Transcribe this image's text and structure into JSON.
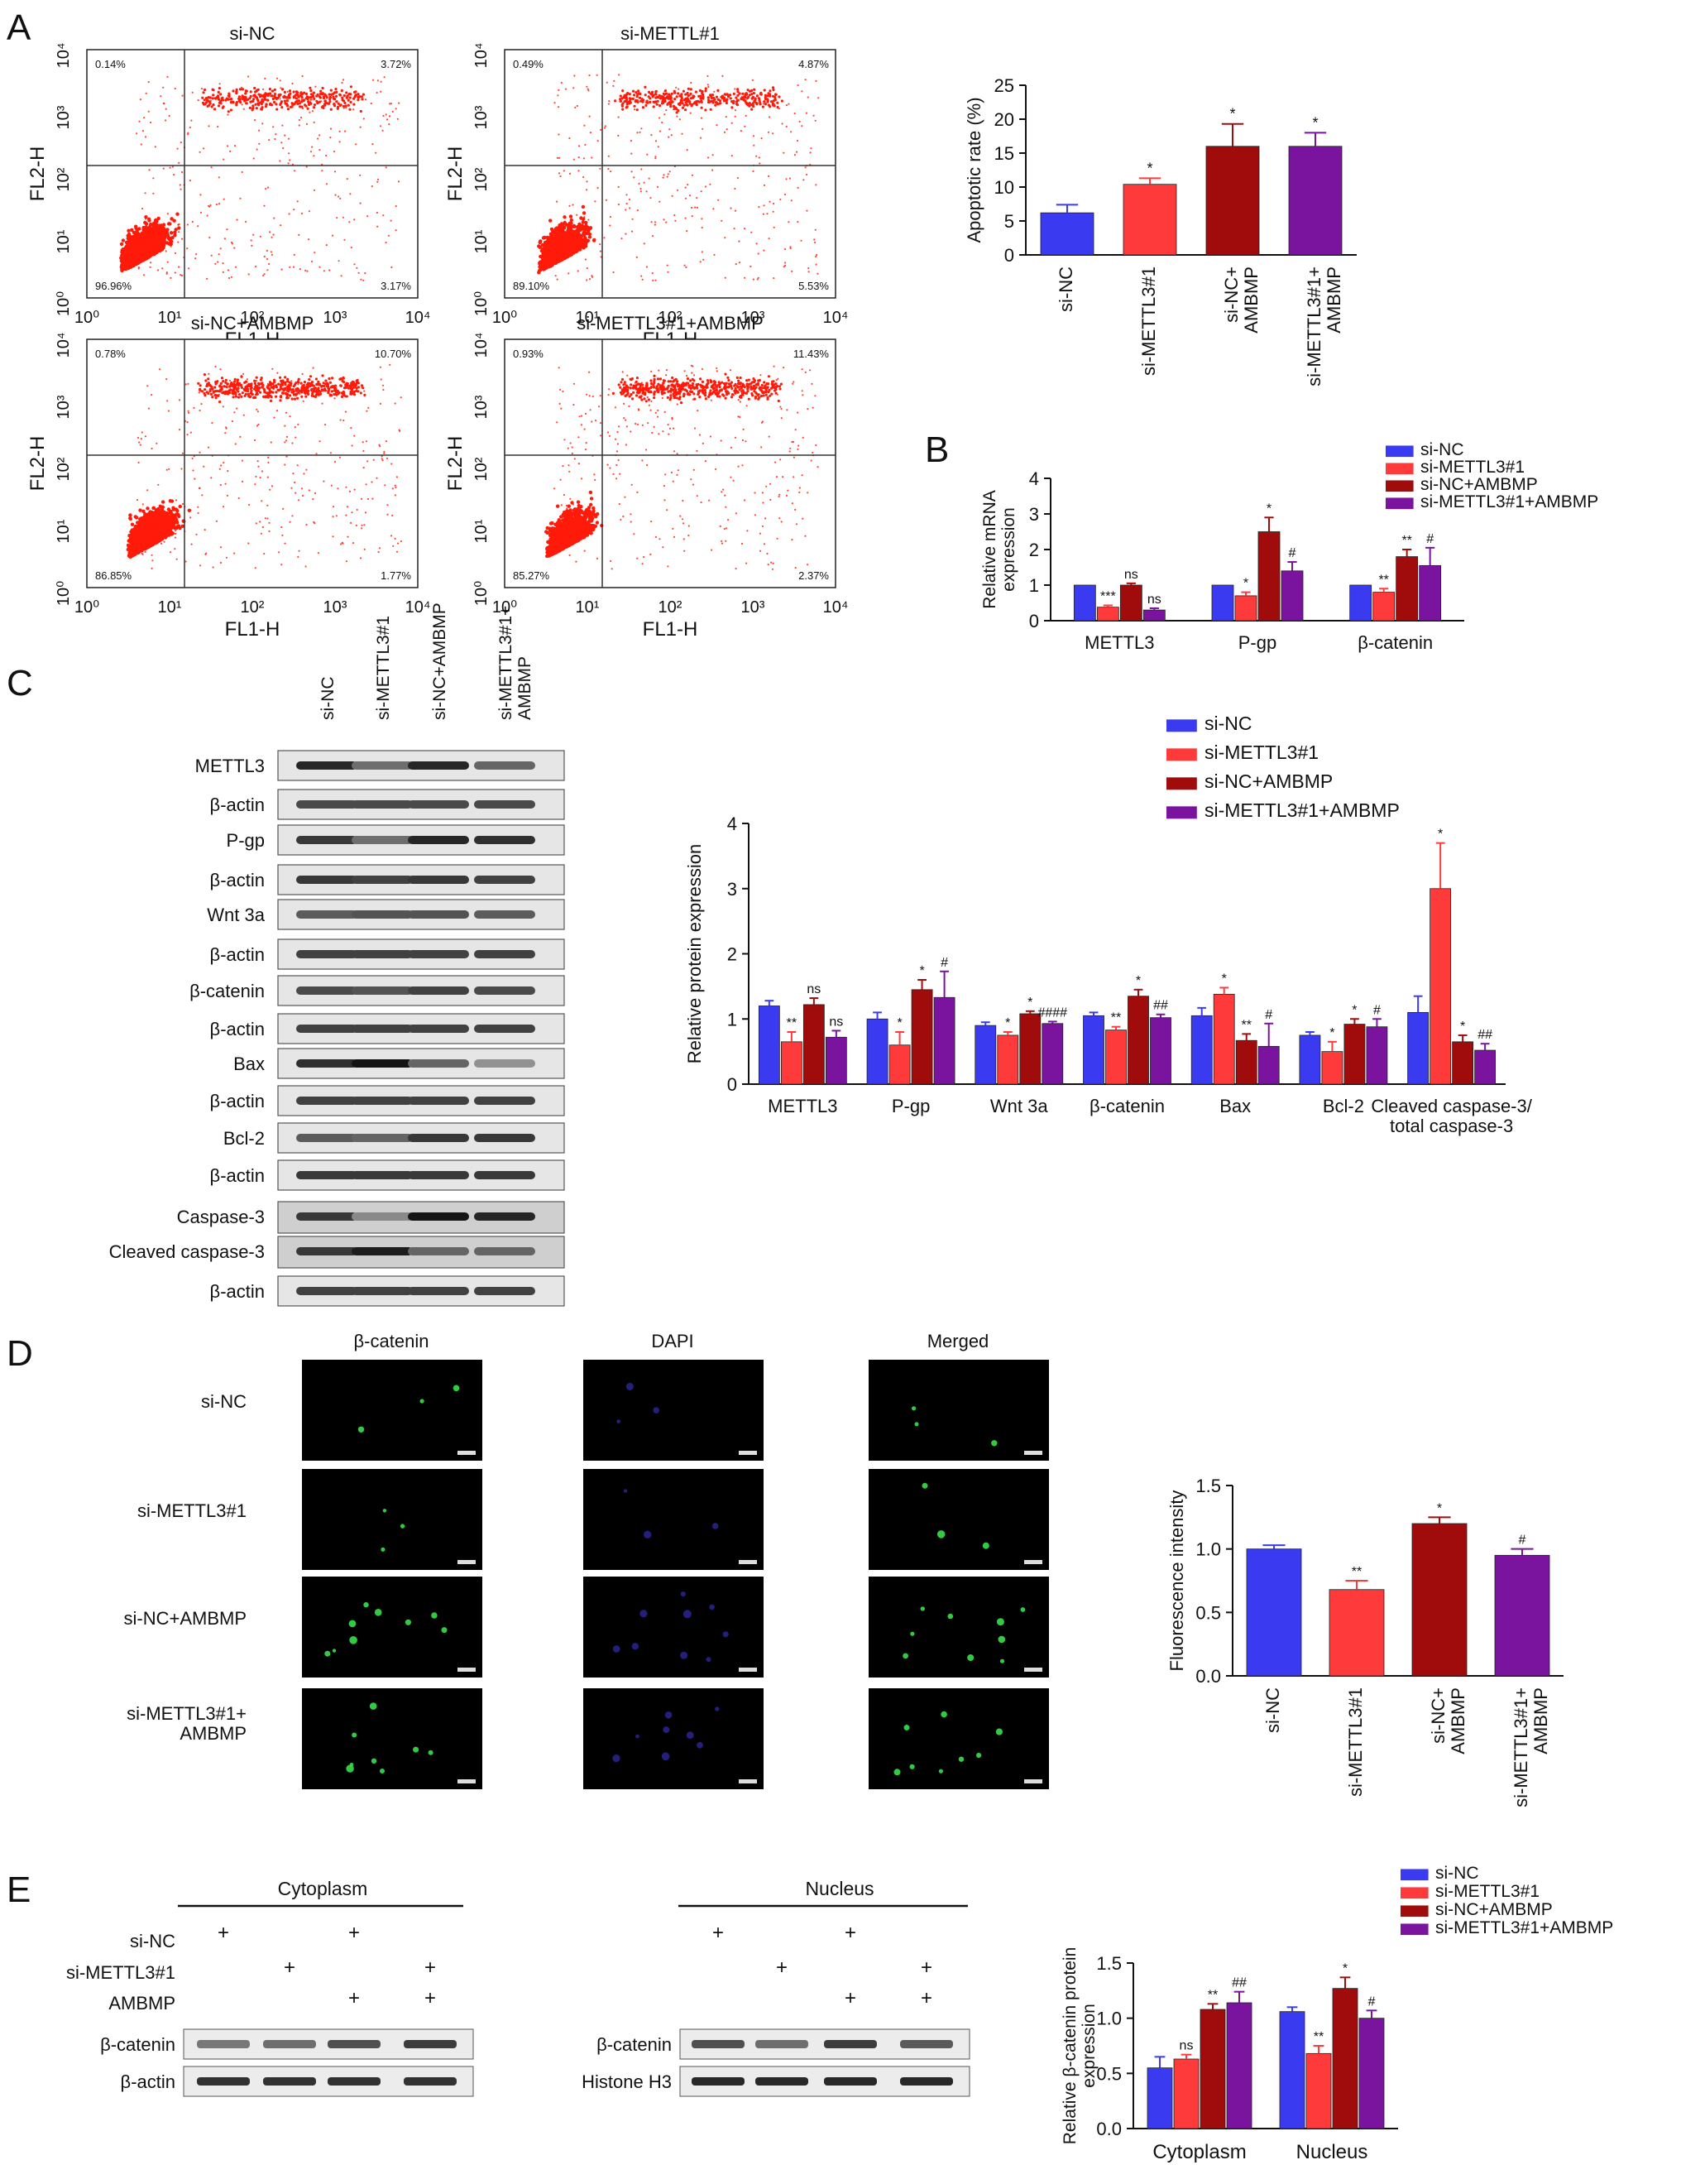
{
  "panel_letters": [
    "A",
    "B",
    "C",
    "D",
    "E"
  ],
  "colors": {
    "si_nc": "#3a3af0",
    "si_mettl": "#ff3a3a",
    "si_nc_ambmp": "#a00c0c",
    "si_mettl_ambmp": "#7a139e",
    "dot_red": "#ff1a0a",
    "green": "#38e04a",
    "blue_dapi": "#3a34cc"
  },
  "panel_a": {
    "flow_plots": [
      {
        "title": "si-NC",
        "q_ul": "0.14%",
        "q_ur": "3.72%",
        "q_ll": "96.96%",
        "q_lr": "3.17%"
      },
      {
        "title": "si-METTL#1",
        "q_ul": "0.49%",
        "q_ur": "4.87%",
        "q_ll": "89.10%",
        "q_lr": "5.53%"
      },
      {
        "title": "si-NC+AMBMP",
        "q_ul": "0.78%",
        "q_ur": "10.70%",
        "q_ll": "86.85%",
        "q_lr": "1.77%"
      },
      {
        "title": "si-METTL3#1+AMBMP",
        "q_ul": "0.93%",
        "q_ur": "11.43%",
        "q_ll": "85.27%",
        "q_lr": "2.37%"
      }
    ],
    "flow_xlabel": "FL1-H",
    "flow_ylabel": "FL2-H",
    "flow_ticks": [
      "10⁰",
      "10¹",
      "10²",
      "10³",
      "10⁴"
    ]
  },
  "panel_b_labels": {},
  "panel_c": {
    "lane_labels": [
      "si-NC",
      "si-METTL3#1",
      "si-NC+AMBMP",
      "si-METTL3#1+\nAMBMP"
    ],
    "blot_rows": [
      "METTL3",
      "β-actin",
      "P-gp",
      "β-actin",
      "Wnt 3a",
      "β-actin",
      "β-catenin",
      "β-actin",
      "Bax",
      "β-actin",
      "Bcl-2",
      "β-actin",
      "Caspase-3",
      "Cleaved caspase-3",
      "β-actin"
    ]
  },
  "panel_d": {
    "columns": [
      "β-catenin",
      "DAPI",
      "Merged"
    ],
    "rows": [
      "si-NC",
      "si-METTL3#1",
      "si-NC+AMBMP",
      "si-METTL3#1+\nAMBMP"
    ]
  },
  "panel_e": {
    "cytoplasm_title": "Cytoplasm",
    "nucleus_title": "Nucleus",
    "treatment_labels": [
      "si-NC",
      "si-METTL3#1",
      "AMBMP"
    ],
    "plus": "+",
    "cyto_rows": [
      "β-catenin",
      "β-actin"
    ],
    "nuc_rows": [
      "β-catenin",
      "Histone H3"
    ],
    "plus_pattern": [
      [
        1,
        0,
        1,
        0
      ],
      [
        0,
        1,
        0,
        1
      ],
      [
        0,
        0,
        1,
        1
      ]
    ]
  },
  "chart_data": [
    {
      "panel": "A",
      "type": "bar",
      "categories": [
        "si-NC",
        "si-METTL3#1",
        "si-NC+\nAMBMP",
        "si-METTL3#1+\nAMBMP"
      ],
      "values": [
        6.2,
        10.4,
        16.0,
        16.0
      ],
      "errors": [
        1.2,
        0.9,
        3.3,
        2.0
      ],
      "annotations": [
        "",
        "*",
        "*",
        "*"
      ],
      "ylabel": "Apoptotic rate (%)",
      "ylim": [
        0,
        25
      ],
      "yticks": [
        0,
        5,
        10,
        15,
        20,
        25
      ]
    },
    {
      "panel": "B",
      "type": "bar",
      "categories": [
        "METTL3",
        "P-gp",
        "β-catenin"
      ],
      "series": [
        {
          "name": "si-NC",
          "values": [
            1.0,
            1.0,
            1.0
          ],
          "errors": [
            0,
            0,
            0
          ],
          "annotations": [
            "",
            "",
            ""
          ]
        },
        {
          "name": "si-METTL3#1",
          "values": [
            0.38,
            0.7,
            0.8
          ],
          "errors": [
            0.05,
            0.1,
            0.1
          ],
          "annotations": [
            "***",
            "*",
            "**"
          ]
        },
        {
          "name": "si-NC+AMBMP",
          "values": [
            1.0,
            2.5,
            1.8
          ],
          "errors": [
            0.05,
            0.4,
            0.2
          ],
          "annotations": [
            "ns",
            "*",
            "**"
          ]
        },
        {
          "name": "si-METTL3#1+AMBMP",
          "values": [
            0.3,
            1.4,
            1.55
          ],
          "errors": [
            0.05,
            0.25,
            0.5
          ],
          "annotations": [
            "ns",
            "#",
            "#"
          ]
        }
      ],
      "ylabel": "Relative mRNA\nexpression",
      "ylim": [
        0,
        4
      ],
      "yticks": [
        0,
        1,
        2,
        3,
        4
      ],
      "legend": "top-right"
    },
    {
      "panel": "C",
      "type": "bar",
      "categories": [
        "METTL3",
        "P-gp",
        "Wnt 3a",
        "β-catenin",
        "Bax",
        "Bcl-2",
        "Cleaved caspase-3/\ntotal caspase-3"
      ],
      "series": [
        {
          "name": "si-NC",
          "values": [
            1.2,
            1.0,
            0.9,
            1.05,
            1.05,
            0.75,
            1.1
          ],
          "errors": [
            0.08,
            0.1,
            0.05,
            0.05,
            0.12,
            0.05,
            0.25
          ],
          "annotations": [
            "",
            "",
            "",
            "",
            "",
            "",
            ""
          ]
        },
        {
          "name": "si-METTL3#1",
          "values": [
            0.65,
            0.6,
            0.75,
            0.83,
            1.38,
            0.5,
            3.0
          ],
          "errors": [
            0.15,
            0.2,
            0.05,
            0.05,
            0.1,
            0.15,
            0.7
          ],
          "annotations": [
            "**",
            "*",
            "*",
            "**",
            "*",
            "*",
            "*"
          ]
        },
        {
          "name": "si-NC+AMBMP",
          "values": [
            1.22,
            1.45,
            1.08,
            1.35,
            0.67,
            0.92,
            0.65
          ],
          "errors": [
            0.1,
            0.15,
            0.04,
            0.1,
            0.1,
            0.08,
            0.1
          ],
          "annotations": [
            "ns",
            "*",
            "*",
            "*",
            "**",
            "*",
            "*"
          ]
        },
        {
          "name": "si-METTL3#1+AMBMP",
          "values": [
            0.72,
            1.33,
            0.93,
            1.02,
            0.58,
            0.88,
            0.52
          ],
          "errors": [
            0.1,
            0.4,
            0.03,
            0.05,
            0.35,
            0.12,
            0.1
          ],
          "annotations": [
            "ns",
            "#",
            "####",
            "##",
            "#",
            "#",
            "##"
          ]
        }
      ],
      "ylabel": "Relative protein expression",
      "ylim": [
        0,
        4
      ],
      "yticks": [
        0,
        1,
        2,
        3,
        4
      ],
      "legend": "top-left"
    },
    {
      "panel": "D",
      "type": "bar",
      "categories": [
        "si-NC",
        "si-METTL3#1",
        "si-NC+\nAMBMP",
        "si-METTL3#1+\nAMBMP"
      ],
      "values": [
        1.0,
        0.68,
        1.2,
        0.95
      ],
      "errors": [
        0.03,
        0.07,
        0.05,
        0.05
      ],
      "annotations": [
        "",
        "**",
        "*",
        "#"
      ],
      "ylabel": "Fluorescence intensity",
      "ylim": [
        0,
        1.5
      ],
      "yticks": [
        "0.0",
        "0.5",
        "1.0",
        "1.5"
      ]
    },
    {
      "panel": "E",
      "type": "bar",
      "categories": [
        "Cytoplasm",
        "Nucleus"
      ],
      "series": [
        {
          "name": "si-NC",
          "values": [
            0.55,
            1.06
          ],
          "errors": [
            0.1,
            0.04
          ],
          "annotations": [
            "",
            ""
          ]
        },
        {
          "name": "si-METTL3#1",
          "values": [
            0.63,
            0.68
          ],
          "errors": [
            0.04,
            0.07
          ],
          "annotations": [
            "ns",
            "**"
          ]
        },
        {
          "name": "si-NC+AMBMP",
          "values": [
            1.08,
            1.27
          ],
          "errors": [
            0.05,
            0.1
          ],
          "annotations": [
            "**",
            "*"
          ]
        },
        {
          "name": "si-METTL3#1+AMBMP",
          "values": [
            1.14,
            1.0
          ],
          "errors": [
            0.1,
            0.07
          ],
          "annotations": [
            "##",
            "#"
          ]
        }
      ],
      "ylabel": "Relative β-catenin protein\nexpression",
      "ylim": [
        0,
        1.5
      ],
      "yticks": [
        "0.0",
        "0.5",
        "1.0",
        "1.5"
      ],
      "legend": "top-right"
    }
  ]
}
